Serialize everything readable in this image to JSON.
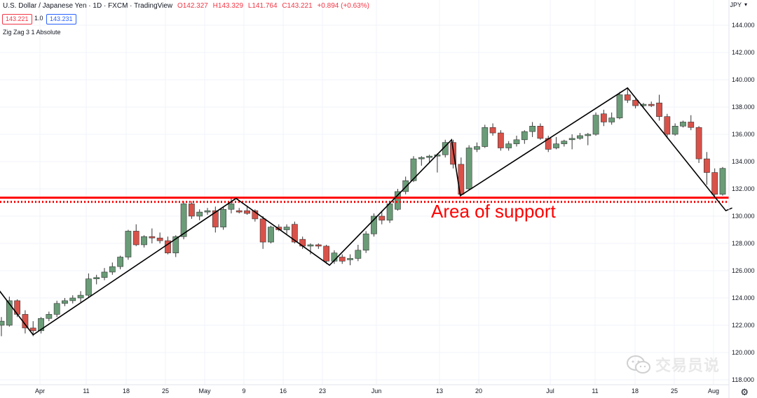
{
  "header": {
    "symbol": "U.S. Dollar / Japanese Yen · 1D · FXCM · TradingView",
    "open": "O142.327",
    "high": "H143.329",
    "low": "L141.764",
    "close": "C143.221",
    "change": "+0.894 (+0.63%)",
    "bid": "143.221",
    "spread": "1.0",
    "ask": "143.231",
    "indicator": "Zig Zag 3 1 Absolute",
    "currency": "JPY"
  },
  "colors": {
    "up": "#6a9c78",
    "down": "#d9524a",
    "zigzag": "#000000",
    "support": "#ff0000",
    "grid": "#f0f3fa",
    "text": "#131722"
  },
  "chart_data": {
    "type": "candlestick",
    "yaxis_ticks": [
      "144.000",
      "142.000",
      "140.000",
      "138.000",
      "136.000",
      "134.000",
      "132.000",
      "130.000",
      "128.000",
      "126.000",
      "124.000",
      "122.000",
      "120.000",
      "118.000"
    ],
    "ylim": [
      117.6,
      144.7
    ],
    "xaxis_ticks": [
      "Apr",
      "11",
      "18",
      "25",
      "May",
      "9",
      "16",
      "23",
      "Jun",
      "13",
      "20",
      "Jul",
      "11",
      "18",
      "25",
      "Aug"
    ],
    "support_level": 131.2,
    "annotation": "Area of support",
    "candles": [
      {
        "o": 122.0,
        "h": 122.6,
        "l": 121.2,
        "c": 122.3
      },
      {
        "o": 122.0,
        "h": 124.1,
        "l": 121.9,
        "c": 123.8
      },
      {
        "o": 123.8,
        "h": 123.9,
        "l": 122.6,
        "c": 122.8
      },
      {
        "o": 122.8,
        "h": 123.1,
        "l": 121.4,
        "c": 121.8
      },
      {
        "o": 121.8,
        "h": 122.3,
        "l": 121.2,
        "c": 121.6
      },
      {
        "o": 121.6,
        "h": 122.6,
        "l": 121.4,
        "c": 122.5
      },
      {
        "o": 122.5,
        "h": 123.0,
        "l": 122.3,
        "c": 122.8
      },
      {
        "o": 122.8,
        "h": 123.8,
        "l": 122.6,
        "c": 123.6
      },
      {
        "o": 123.6,
        "h": 124.0,
        "l": 123.4,
        "c": 123.8
      },
      {
        "o": 123.8,
        "h": 124.2,
        "l": 123.6,
        "c": 124.0
      },
      {
        "o": 124.0,
        "h": 124.5,
        "l": 123.7,
        "c": 124.2
      },
      {
        "o": 124.2,
        "h": 125.8,
        "l": 124.0,
        "c": 125.4
      },
      {
        "o": 125.4,
        "h": 125.7,
        "l": 125.0,
        "c": 125.5
      },
      {
        "o": 125.5,
        "h": 126.2,
        "l": 125.3,
        "c": 125.9
      },
      {
        "o": 125.9,
        "h": 126.6,
        "l": 125.7,
        "c": 126.3
      },
      {
        "o": 126.3,
        "h": 127.1,
        "l": 126.1,
        "c": 127.0
      },
      {
        "o": 127.0,
        "h": 129.0,
        "l": 126.8,
        "c": 128.9
      },
      {
        "o": 128.9,
        "h": 129.4,
        "l": 127.8,
        "c": 127.9
      },
      {
        "o": 127.9,
        "h": 128.6,
        "l": 127.7,
        "c": 128.5
      },
      {
        "o": 128.5,
        "h": 129.1,
        "l": 128.0,
        "c": 128.4
      },
      {
        "o": 128.4,
        "h": 128.8,
        "l": 128.0,
        "c": 128.2
      },
      {
        "o": 128.2,
        "h": 128.5,
        "l": 127.2,
        "c": 127.3
      },
      {
        "o": 127.3,
        "h": 128.6,
        "l": 127.0,
        "c": 128.5
      },
      {
        "o": 128.5,
        "h": 131.1,
        "l": 128.3,
        "c": 130.9
      },
      {
        "o": 130.9,
        "h": 131.1,
        "l": 129.8,
        "c": 130.0
      },
      {
        "o": 130.0,
        "h": 130.5,
        "l": 129.7,
        "c": 130.3
      },
      {
        "o": 130.3,
        "h": 130.6,
        "l": 130.1,
        "c": 130.4
      },
      {
        "o": 130.4,
        "h": 130.7,
        "l": 128.8,
        "c": 129.2
      },
      {
        "o": 129.2,
        "h": 130.7,
        "l": 129.0,
        "c": 130.5
      },
      {
        "o": 130.5,
        "h": 131.3,
        "l": 130.2,
        "c": 130.9
      },
      {
        "o": 130.4,
        "h": 130.6,
        "l": 130.2,
        "c": 130.3
      },
      {
        "o": 130.4,
        "h": 130.7,
        "l": 130.1,
        "c": 130.2
      },
      {
        "o": 130.4,
        "h": 130.5,
        "l": 129.6,
        "c": 129.8
      },
      {
        "o": 129.8,
        "h": 130.0,
        "l": 127.6,
        "c": 128.1
      },
      {
        "o": 128.1,
        "h": 129.3,
        "l": 128.0,
        "c": 129.2
      },
      {
        "o": 129.2,
        "h": 129.4,
        "l": 128.9,
        "c": 129.0
      },
      {
        "o": 129.0,
        "h": 129.4,
        "l": 128.7,
        "c": 129.2
      },
      {
        "o": 129.4,
        "h": 129.6,
        "l": 128.0,
        "c": 128.1
      },
      {
        "o": 128.3,
        "h": 128.5,
        "l": 127.6,
        "c": 127.8
      },
      {
        "o": 127.8,
        "h": 128.0,
        "l": 127.2,
        "c": 127.9
      },
      {
        "o": 127.9,
        "h": 128.0,
        "l": 127.6,
        "c": 127.8
      },
      {
        "o": 127.8,
        "h": 127.9,
        "l": 126.5,
        "c": 126.7
      },
      {
        "o": 126.7,
        "h": 127.5,
        "l": 126.5,
        "c": 127.3
      },
      {
        "o": 127.0,
        "h": 127.2,
        "l": 126.5,
        "c": 126.7
      },
      {
        "o": 126.8,
        "h": 127.2,
        "l": 126.4,
        "c": 126.9
      },
      {
        "o": 126.9,
        "h": 127.9,
        "l": 126.7,
        "c": 127.5
      },
      {
        "o": 127.5,
        "h": 128.9,
        "l": 127.3,
        "c": 128.7
      },
      {
        "o": 128.7,
        "h": 130.2,
        "l": 128.5,
        "c": 130.0
      },
      {
        "o": 130.0,
        "h": 130.4,
        "l": 129.4,
        "c": 129.7
      },
      {
        "o": 129.7,
        "h": 131.0,
        "l": 129.5,
        "c": 130.9
      },
      {
        "o": 130.5,
        "h": 132.0,
        "l": 130.4,
        "c": 131.8
      },
      {
        "o": 131.8,
        "h": 132.9,
        "l": 131.6,
        "c": 132.6
      },
      {
        "o": 132.6,
        "h": 134.4,
        "l": 132.5,
        "c": 134.2
      },
      {
        "o": 134.2,
        "h": 134.4,
        "l": 133.7,
        "c": 134.3
      },
      {
        "o": 134.3,
        "h": 134.5,
        "l": 133.9,
        "c": 134.4
      },
      {
        "o": 134.4,
        "h": 134.6,
        "l": 133.2,
        "c": 134.5
      },
      {
        "o": 134.5,
        "h": 135.6,
        "l": 134.3,
        "c": 135.4
      },
      {
        "o": 135.4,
        "h": 135.6,
        "l": 133.5,
        "c": 133.8
      },
      {
        "o": 133.8,
        "h": 134.3,
        "l": 131.5,
        "c": 131.6
      },
      {
        "o": 132.0,
        "h": 135.2,
        "l": 131.9,
        "c": 135.0
      },
      {
        "o": 134.9,
        "h": 135.4,
        "l": 134.7,
        "c": 135.1
      },
      {
        "o": 135.1,
        "h": 136.7,
        "l": 135.0,
        "c": 136.5
      },
      {
        "o": 136.5,
        "h": 136.8,
        "l": 135.9,
        "c": 136.1
      },
      {
        "o": 136.1,
        "h": 136.3,
        "l": 134.8,
        "c": 135.0
      },
      {
        "o": 135.0,
        "h": 135.5,
        "l": 134.8,
        "c": 135.3
      },
      {
        "o": 135.3,
        "h": 135.9,
        "l": 135.1,
        "c": 135.6
      },
      {
        "o": 135.6,
        "h": 136.3,
        "l": 135.3,
        "c": 136.2
      },
      {
        "o": 136.2,
        "h": 136.9,
        "l": 135.8,
        "c": 136.6
      },
      {
        "o": 136.6,
        "h": 136.8,
        "l": 135.6,
        "c": 135.7
      },
      {
        "o": 135.7,
        "h": 135.9,
        "l": 134.7,
        "c": 134.9
      },
      {
        "o": 135.0,
        "h": 135.8,
        "l": 134.9,
        "c": 135.3
      },
      {
        "o": 135.3,
        "h": 135.6,
        "l": 135.1,
        "c": 135.5
      },
      {
        "o": 135.6,
        "h": 136.0,
        "l": 134.9,
        "c": 135.7
      },
      {
        "o": 135.7,
        "h": 136.1,
        "l": 135.6,
        "c": 135.9
      },
      {
        "o": 135.9,
        "h": 136.1,
        "l": 135.2,
        "c": 136.0
      },
      {
        "o": 136.0,
        "h": 137.6,
        "l": 135.9,
        "c": 137.4
      },
      {
        "o": 137.5,
        "h": 137.8,
        "l": 136.6,
        "c": 136.9
      },
      {
        "o": 136.9,
        "h": 137.6,
        "l": 136.7,
        "c": 137.2
      },
      {
        "o": 137.2,
        "h": 139.1,
        "l": 137.1,
        "c": 138.9
      },
      {
        "o": 138.9,
        "h": 139.4,
        "l": 138.3,
        "c": 138.5
      },
      {
        "o": 138.5,
        "h": 138.6,
        "l": 137.9,
        "c": 138.1
      },
      {
        "o": 138.1,
        "h": 138.3,
        "l": 137.9,
        "c": 138.2
      },
      {
        "o": 138.2,
        "h": 138.4,
        "l": 138.0,
        "c": 138.1
      },
      {
        "o": 138.3,
        "h": 138.9,
        "l": 137.0,
        "c": 137.3
      },
      {
        "o": 137.3,
        "h": 137.5,
        "l": 135.7,
        "c": 136.0
      },
      {
        "o": 136.0,
        "h": 136.8,
        "l": 135.9,
        "c": 136.6
      },
      {
        "o": 136.6,
        "h": 137.0,
        "l": 136.5,
        "c": 136.9
      },
      {
        "o": 136.9,
        "h": 137.4,
        "l": 136.3,
        "c": 136.5
      },
      {
        "o": 136.5,
        "h": 136.6,
        "l": 133.9,
        "c": 134.2
      },
      {
        "o": 134.2,
        "h": 134.7,
        "l": 132.3,
        "c": 133.2
      },
      {
        "o": 133.2,
        "h": 133.5,
        "l": 131.5,
        "c": 131.6
      },
      {
        "o": 131.6,
        "h": 133.6,
        "l": 131.5,
        "c": 133.5
      }
    ],
    "zigzag": [
      {
        "i": -1.0,
        "y": 125.1
      },
      {
        "i": 4.0,
        "y": 121.3
      },
      {
        "i": 29.6,
        "y": 131.3
      },
      {
        "i": 41.4,
        "y": 126.4
      },
      {
        "i": 56.8,
        "y": 135.6
      },
      {
        "i": 57.9,
        "y": 131.5
      },
      {
        "i": 79.0,
        "y": 139.4
      },
      {
        "i": 91.4,
        "y": 130.4
      },
      {
        "i": 92.2,
        "y": 130.6
      }
    ]
  }
}
